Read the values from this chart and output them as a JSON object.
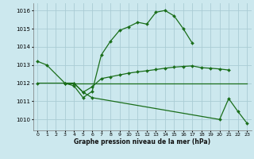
{
  "xlabel": "Graphe pression niveau de la mer (hPa)",
  "background_color": "#cce8ee",
  "grid_color": "#aaccd4",
  "line_color": "#1a6e1a",
  "x_ticks": [
    0,
    1,
    2,
    3,
    4,
    5,
    6,
    7,
    8,
    9,
    10,
    11,
    12,
    13,
    14,
    15,
    16,
    17,
    18,
    19,
    20,
    21,
    22,
    23
  ],
  "ylim": [
    1009.4,
    1016.4
  ],
  "yticks": [
    1010,
    1011,
    1012,
    1013,
    1014,
    1015,
    1016
  ],
  "series1_x": [
    0,
    1,
    3,
    4,
    5,
    6,
    7,
    8,
    9,
    10,
    11,
    12,
    13,
    14,
    15,
    16,
    17
  ],
  "series1_y": [
    1013.2,
    1013.0,
    1012.0,
    1011.85,
    1011.2,
    1011.55,
    1013.55,
    1014.3,
    1014.9,
    1015.1,
    1015.35,
    1015.25,
    1015.9,
    1016.0,
    1015.7,
    1015.0,
    1014.2
  ],
  "series2_x": [
    3,
    4,
    5,
    6,
    7,
    8,
    9,
    10,
    11,
    12,
    13,
    14,
    15,
    16,
    17,
    18,
    19,
    20,
    21
  ],
  "series2_y": [
    1012.0,
    1012.0,
    1011.5,
    1011.8,
    1012.25,
    1012.35,
    1012.45,
    1012.55,
    1012.62,
    1012.68,
    1012.75,
    1012.82,
    1012.88,
    1012.92,
    1012.95,
    1012.85,
    1012.82,
    1012.78,
    1012.72
  ],
  "series3_x": [
    3,
    23
  ],
  "series3_y": [
    1012.0,
    1012.0
  ],
  "series4_x": [
    0,
    3,
    4,
    5,
    6,
    20,
    21,
    22,
    23
  ],
  "series4_y": [
    1012.0,
    1012.0,
    1012.0,
    1011.5,
    1011.2,
    1010.0,
    1011.15,
    1010.45,
    1009.8
  ]
}
